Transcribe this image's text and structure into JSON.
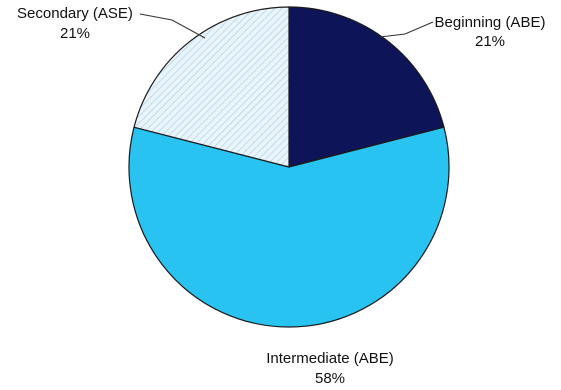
{
  "chart_data": {
    "type": "pie",
    "title": "",
    "slices": [
      {
        "label": "Beginning (ABE)",
        "pct_label": "21%",
        "value": 21,
        "color": "#0d1457",
        "pattern": "solid"
      },
      {
        "label": "Intermediate (ABE)",
        "pct_label": "58%",
        "value": 58,
        "color": "#29c3f2",
        "pattern": "solid"
      },
      {
        "label": "Secondary (ASE)",
        "pct_label": "21%",
        "value": 21,
        "color": "#e9f4fb",
        "pattern": "diagonal-hatch"
      }
    ],
    "start": "12 o'clock",
    "direction": "clockwise",
    "edge_color": "#1a1a1a",
    "hatch_color": "#a9cfe7",
    "legend": "none"
  }
}
